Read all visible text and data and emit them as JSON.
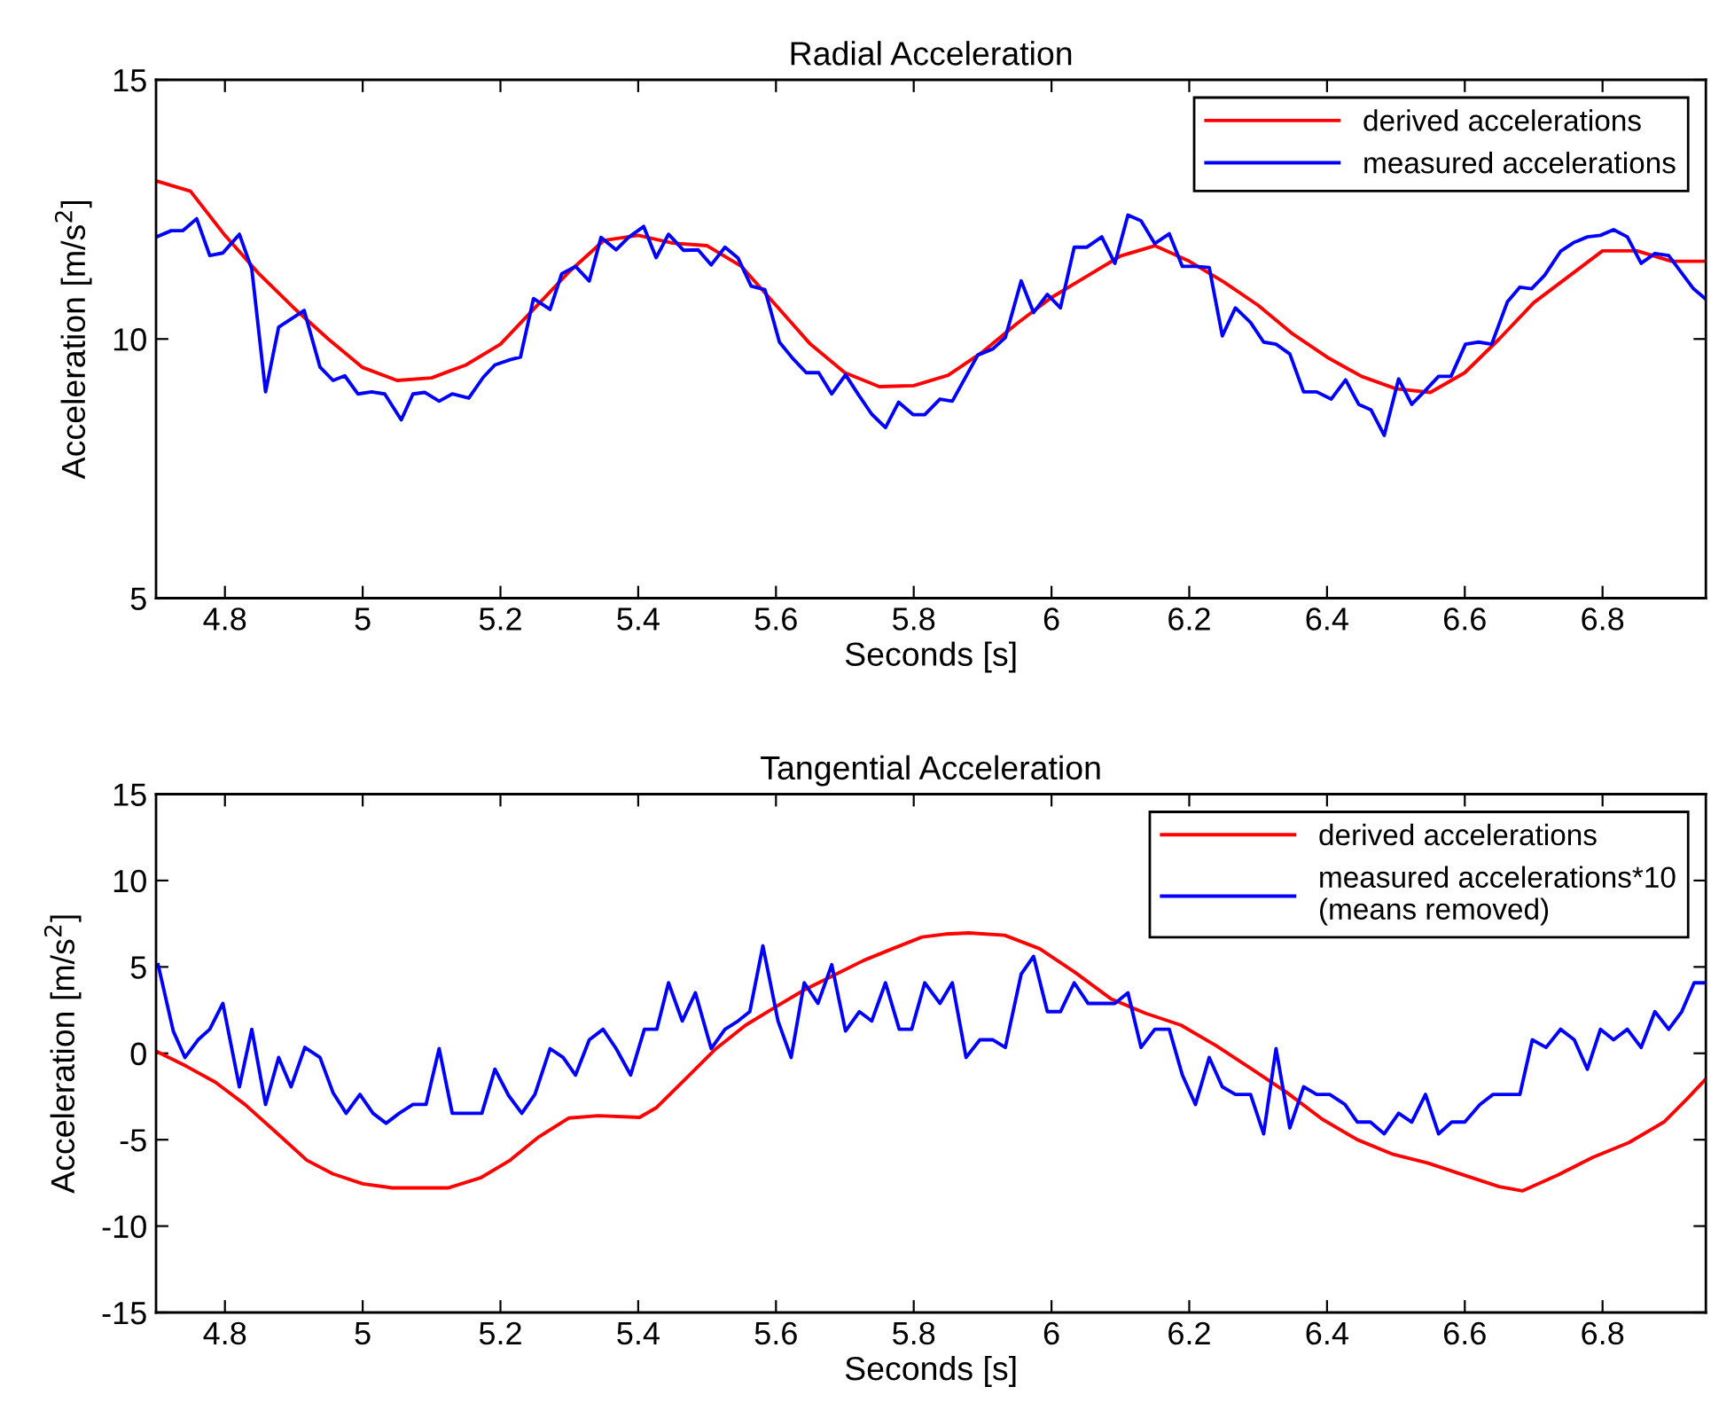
{
  "chart_data": [
    {
      "type": "line",
      "title": "Radial Acceleration",
      "xlabel": "Seconds [s]",
      "ylabel": "Acceleration [m/s$^{2}$]",
      "xlim": [
        4.7,
        6.95
      ],
      "xticks": [
        4.8,
        5,
        5.2,
        5.4,
        5.6,
        5.8,
        6,
        6.2,
        6.4,
        6.6,
        6.8
      ],
      "ylim": [
        5,
        15
      ],
      "yticks": [
        5,
        10,
        15
      ],
      "grid": false,
      "legend": "top right",
      "marker": "none",
      "line_style": "solid",
      "series": [
        {
          "name": "derived accelerations",
          "color": "#ff0000",
          "x": [
            4.7,
            4.75,
            4.8,
            4.85,
            4.9,
            4.95,
            5.0,
            5.05,
            5.1,
            5.15,
            5.2,
            5.25,
            5.3,
            5.35,
            5.4,
            5.45,
            5.5,
            5.55,
            5.6,
            5.65,
            5.7,
            5.75,
            5.8,
            5.85,
            5.9,
            5.95,
            6.0,
            6.05,
            6.1,
            6.15,
            6.2,
            6.25,
            6.3,
            6.35,
            6.4,
            6.45,
            6.5,
            6.55,
            6.6,
            6.65,
            6.7,
            6.75,
            6.8,
            6.85,
            6.9,
            6.95
          ],
          "values": [
            13.05,
            12.85,
            12.0,
            11.25,
            10.6,
            10.0,
            9.45,
            9.2,
            9.25,
            9.5,
            9.9,
            10.6,
            11.3,
            11.9,
            12.0,
            11.85,
            11.8,
            11.4,
            10.65,
            9.9,
            9.35,
            9.08,
            9.1,
            9.3,
            9.75,
            10.3,
            10.8,
            11.2,
            11.6,
            11.8,
            11.5,
            11.1,
            10.65,
            10.1,
            9.65,
            9.28,
            9.04,
            8.97,
            9.35,
            10.0,
            10.7,
            11.2,
            11.7,
            11.7,
            11.5,
            11.5
          ]
        },
        {
          "name": "measured accelerations",
          "color": "#0000ff",
          "x": [
            4.701,
            4.722,
            4.739,
            4.759,
            4.778,
            4.797,
            4.821,
            4.839,
            4.859,
            4.878,
            4.915,
            4.938,
            4.957,
            4.974,
            4.993,
            5.013,
            5.032,
            5.056,
            5.073,
            5.09,
            5.111,
            5.13,
            5.154,
            5.175,
            5.192,
            5.214,
            5.229,
            5.248,
            5.272,
            5.289,
            5.309,
            5.329,
            5.346,
            5.368,
            5.386,
            5.408,
            5.426,
            5.444,
            5.466,
            5.487,
            5.506,
            5.526,
            5.545,
            5.564,
            5.584,
            5.605,
            5.624,
            5.644,
            5.662,
            5.681,
            5.701,
            5.72,
            5.739,
            5.759,
            5.778,
            5.799,
            5.816,
            5.838,
            5.856,
            5.893,
            5.915,
            5.933,
            5.956,
            5.974,
            5.994,
            6.013,
            6.033,
            6.051,
            6.073,
            6.092,
            6.111,
            6.13,
            6.15,
            6.171,
            6.19,
            6.209,
            6.229,
            6.248,
            6.267,
            6.289,
            6.308,
            6.326,
            6.346,
            6.366,
            6.385,
            6.406,
            6.427,
            6.446,
            6.464,
            6.483,
            6.504,
            6.523,
            6.543,
            6.562,
            6.58,
            6.601,
            6.62,
            6.639,
            6.662,
            6.68,
            6.697,
            6.716,
            6.739,
            6.758,
            6.778,
            6.797,
            6.816,
            6.836,
            6.856,
            6.876,
            6.896,
            6.914,
            6.932,
            6.949
          ],
          "values": [
            11.97,
            12.09,
            12.09,
            12.32,
            11.61,
            11.66,
            12.02,
            11.35,
            8.98,
            10.23,
            10.55,
            9.46,
            9.2,
            9.29,
            8.94,
            8.98,
            8.94,
            8.44,
            8.94,
            8.97,
            8.8,
            8.94,
            8.86,
            9.26,
            9.5,
            9.6,
            9.65,
            10.78,
            10.57,
            11.26,
            11.4,
            11.12,
            11.96,
            11.72,
            11.96,
            12.17,
            11.57,
            12.02,
            11.71,
            11.72,
            11.43,
            11.77,
            11.56,
            11.02,
            10.95,
            9.94,
            9.63,
            9.35,
            9.35,
            8.94,
            9.31,
            8.92,
            8.55,
            8.29,
            8.78,
            8.54,
            8.54,
            8.84,
            8.8,
            9.69,
            9.81,
            10.03,
            11.12,
            10.51,
            10.86,
            10.6,
            11.77,
            11.77,
            11.97,
            11.46,
            12.39,
            12.28,
            11.84,
            12.03,
            11.4,
            11.4,
            11.38,
            10.06,
            10.6,
            10.32,
            9.94,
            9.9,
            9.71,
            8.98,
            8.98,
            8.84,
            9.21,
            8.74,
            8.63,
            8.14,
            9.23,
            8.74,
            9.01,
            9.28,
            9.28,
            9.9,
            9.94,
            9.9,
            10.72,
            11.0,
            10.97,
            11.23,
            11.69,
            11.86,
            11.97,
            12.0,
            12.11,
            11.97,
            11.46,
            11.65,
            11.61,
            11.29,
            10.97,
            10.78
          ]
        }
      ]
    },
    {
      "type": "line",
      "title": "Tangential Acceleration",
      "xlabel": "Seconds [s]",
      "ylabel": "Acceleration [m/s$^{2}$]",
      "xlim": [
        4.7,
        6.95
      ],
      "xticks": [
        4.8,
        5,
        5.2,
        5.4,
        5.6,
        5.8,
        6,
        6.2,
        6.4,
        6.6,
        6.8
      ],
      "ylim": [
        -15,
        15
      ],
      "yticks": [
        -15,
        -10,
        -5,
        0,
        5,
        10,
        15
      ],
      "grid": false,
      "legend": "top right",
      "marker": "none",
      "line_style": "solid",
      "series": [
        {
          "name": "derived accelerations",
          "color": "#ff0000",
          "x": [
            4.701,
            4.744,
            4.786,
            4.829,
            4.872,
            4.919,
            4.957,
            5.0,
            5.043,
            5.086,
            5.124,
            5.171,
            5.214,
            5.256,
            5.299,
            5.342,
            5.402,
            5.427,
            5.47,
            5.513,
            5.556,
            5.598,
            5.641,
            5.684,
            5.727,
            5.769,
            5.812,
            5.846,
            5.88,
            5.932,
            5.983,
            6.034,
            6.086,
            6.137,
            6.188,
            6.239,
            6.291,
            6.342,
            6.393,
            6.444,
            6.496,
            6.547,
            6.598,
            6.65,
            6.684,
            6.735,
            6.786,
            6.838,
            6.889,
            6.923,
            6.949
          ],
          "values": [
            0.1,
            -0.75,
            -1.67,
            -2.96,
            -4.49,
            -6.19,
            -6.98,
            -7.55,
            -7.79,
            -7.79,
            -7.79,
            -7.21,
            -6.19,
            -4.83,
            -3.75,
            -3.61,
            -3.71,
            -3.13,
            -1.43,
            0.27,
            1.63,
            2.65,
            3.67,
            4.52,
            5.37,
            6.05,
            6.73,
            6.9,
            6.97,
            6.83,
            6.05,
            4.69,
            3.16,
            2.31,
            1.63,
            0.44,
            -0.92,
            -2.28,
            -3.81,
            -5.0,
            -5.85,
            -6.36,
            -7.04,
            -7.72,
            -7.96,
            -7.04,
            -6.02,
            -5.17,
            -3.98,
            -2.62,
            -1.53
          ]
        },
        {
          "name": "measured accelerations*10\n(means removed)",
          "color": "#0000ff",
          "x": [
            4.703,
            4.725,
            4.742,
            4.761,
            4.778,
            4.797,
            4.821,
            4.839,
            4.859,
            4.878,
            4.896,
            4.916,
            4.938,
            4.957,
            4.976,
            4.996,
            5.015,
            5.034,
            5.053,
            5.073,
            5.092,
            5.111,
            5.13,
            5.154,
            5.173,
            5.192,
            5.212,
            5.231,
            5.25,
            5.272,
            5.291,
            5.309,
            5.329,
            5.349,
            5.368,
            5.389,
            5.409,
            5.427,
            5.444,
            5.464,
            5.483,
            5.506,
            5.526,
            5.545,
            5.562,
            5.581,
            5.603,
            5.622,
            5.641,
            5.661,
            5.681,
            5.701,
            5.721,
            5.739,
            5.759,
            5.779,
            5.797,
            5.816,
            5.838,
            5.856,
            5.876,
            5.896,
            5.915,
            5.933,
            5.956,
            5.974,
            5.994,
            6.013,
            6.033,
            6.053,
            6.073,
            6.092,
            6.111,
            6.13,
            6.15,
            6.171,
            6.19,
            6.209,
            6.229,
            6.248,
            6.267,
            6.289,
            6.308,
            6.326,
            6.346,
            6.366,
            6.385,
            6.404,
            6.426,
            6.444,
            6.463,
            6.483,
            6.504,
            6.523,
            6.543,
            6.562,
            6.581,
            6.6,
            6.622,
            6.641,
            6.66,
            6.68,
            6.698,
            6.718,
            6.739,
            6.759,
            6.778,
            6.797,
            6.816,
            6.836,
            6.856,
            6.876,
            6.896,
            6.915,
            6.933,
            6.949
          ],
          "values": [
            5.13,
            1.29,
            -0.24,
            0.78,
            1.39,
            2.89,
            -1.94,
            1.39,
            -2.96,
            -0.24,
            -1.94,
            0.34,
            -0.24,
            -2.28,
            -3.47,
            -2.38,
            -3.47,
            -4.05,
            -3.47,
            -2.96,
            -2.96,
            0.27,
            -3.47,
            -3.47,
            -3.47,
            -0.92,
            -2.45,
            -3.47,
            -2.38,
            0.27,
            -0.24,
            -1.26,
            0.78,
            1.39,
            0.27,
            -1.26,
            1.39,
            1.39,
            4.08,
            1.87,
            3.5,
            0.27,
            1.39,
            1.87,
            2.41,
            6.22,
            1.87,
            -0.24,
            4.08,
            2.89,
            5.13,
            1.29,
            2.41,
            1.87,
            4.08,
            1.39,
            1.39,
            4.08,
            2.89,
            4.08,
            -0.24,
            0.78,
            0.78,
            0.34,
            4.59,
            5.61,
            2.41,
            2.41,
            4.08,
            2.89,
            2.89,
            2.89,
            3.5,
            0.34,
            1.39,
            1.39,
            -1.26,
            -2.96,
            -0.24,
            -1.94,
            -2.38,
            -2.38,
            -4.66,
            0.27,
            -4.32,
            -1.94,
            -2.38,
            -2.38,
            -2.96,
            -3.98,
            -3.98,
            -4.66,
            -3.47,
            -3.98,
            -2.38,
            -4.66,
            -3.98,
            -3.98,
            -2.96,
            -2.38,
            -2.38,
            -2.38,
            0.78,
            0.34,
            1.39,
            0.78,
            -0.92,
            1.39,
            0.78,
            1.39,
            0.34,
            2.41,
            1.39,
            2.41,
            4.08,
            4.08
          ]
        }
      ]
    }
  ]
}
